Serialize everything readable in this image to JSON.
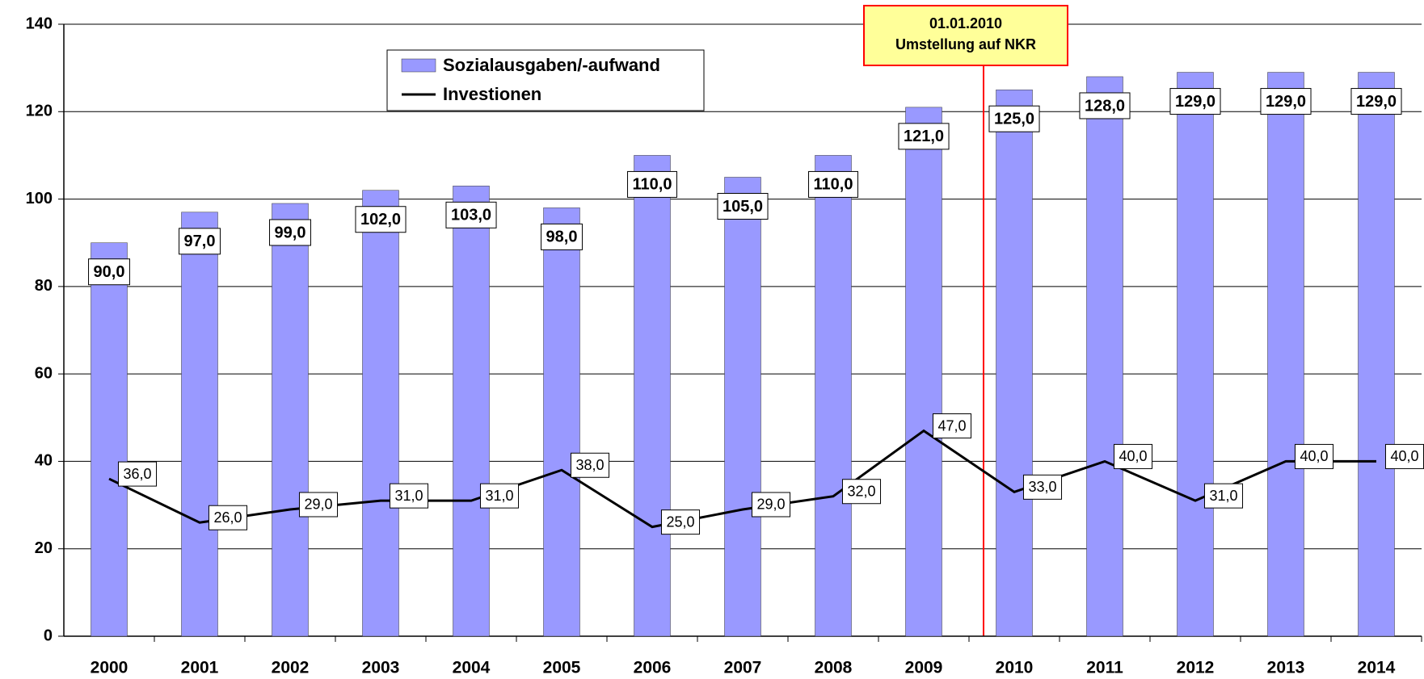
{
  "chart_data": {
    "type": "bar",
    "categories": [
      "2000",
      "2001",
      "2002",
      "2003",
      "2004",
      "2005",
      "2006",
      "2007",
      "2008",
      "2009",
      "2010",
      "2011",
      "2012",
      "2013",
      "2014"
    ],
    "series": [
      {
        "name": "Sozialausgaben/-aufwand",
        "type": "bar",
        "color": "#9999ff",
        "values": [
          90,
          97,
          99,
          102,
          103,
          98,
          110,
          105,
          110,
          121,
          125,
          128,
          129,
          129,
          129
        ],
        "value_labels": [
          "90,0",
          "97,0",
          "99,0",
          "102,0",
          "103,0",
          "98,0",
          "110,0",
          "105,0",
          "110,0",
          "121,0",
          "125,0",
          "128,0",
          "129,0",
          "129,0",
          "129,0"
        ]
      },
      {
        "name": "Investionen",
        "type": "line",
        "color": "#000000",
        "values": [
          36,
          26,
          29,
          31,
          31,
          38,
          25,
          29,
          32,
          47,
          33,
          40,
          31,
          40,
          40
        ],
        "value_labels": [
          "36,0",
          "26,0",
          "29,0",
          "31,0",
          "31,0",
          "38,0",
          "25,0",
          "29,0",
          "32,0",
          "47,0",
          "33,0",
          "40,0",
          "31,0",
          "40,0",
          "40,0"
        ]
      }
    ],
    "annotations": [
      "01.01.2010",
      "Umstellung auf NKR"
    ],
    "ylim": [
      0,
      140
    ],
    "yticks": [
      0,
      20,
      40,
      60,
      80,
      100,
      120,
      140
    ],
    "grid": true
  }
}
